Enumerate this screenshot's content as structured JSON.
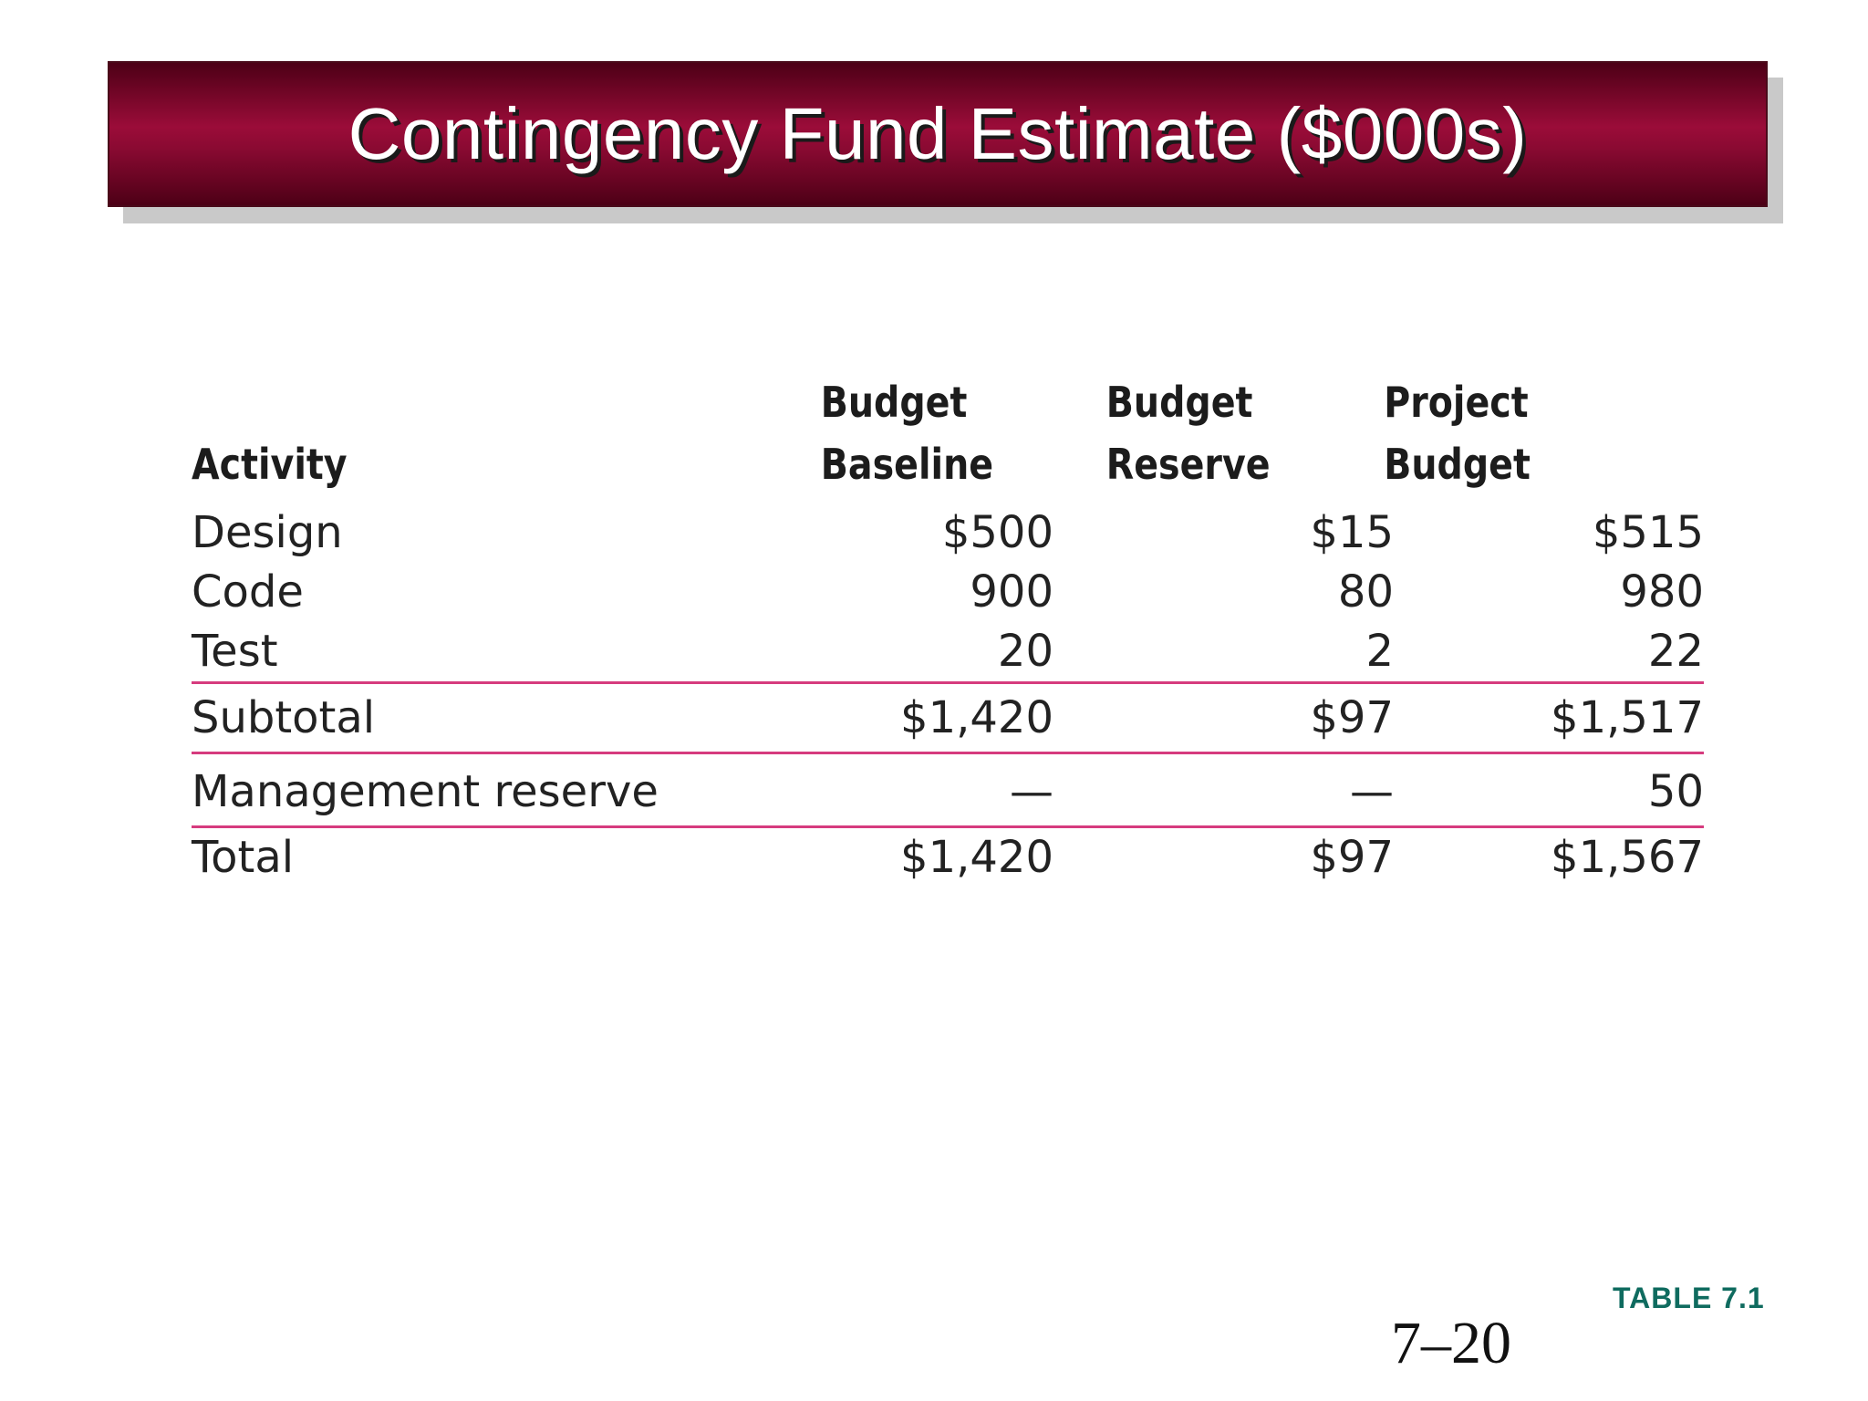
{
  "slide": {
    "title": "Contingency Fund Estimate ($000s)",
    "table_label": "TABLE 7.1",
    "page_number": "7–20",
    "colors": {
      "title_bar": "#9b0c39",
      "title_bar_dark": "#4d0016",
      "rule": "#d63b7e",
      "table_label": "#0f6b5f"
    }
  },
  "table": {
    "headers": {
      "activity": "Activity",
      "baseline_line1": "Budget",
      "baseline_line2": "Baseline",
      "reserve_line1": "Budget",
      "reserve_line2": "Reserve",
      "project_line1": "Project",
      "project_line2": "Budget"
    },
    "rows": [
      {
        "activity": "Design",
        "baseline": "$500",
        "reserve": "$15",
        "project": "$515"
      },
      {
        "activity": "Code",
        "baseline": "900",
        "reserve": "80",
        "project": "980"
      },
      {
        "activity": "Test",
        "baseline": "20",
        "reserve": "2",
        "project": "22"
      }
    ],
    "subtotal": {
      "activity": "Subtotal",
      "baseline": "$1,420",
      "reserve": "$97",
      "project": "$1,517"
    },
    "management_reserve": {
      "activity": "Management reserve",
      "baseline": "—",
      "reserve": "—",
      "project": "50"
    },
    "total": {
      "activity": "Total",
      "baseline": "$1,420",
      "reserve": "$97",
      "project": "$1,567"
    }
  }
}
